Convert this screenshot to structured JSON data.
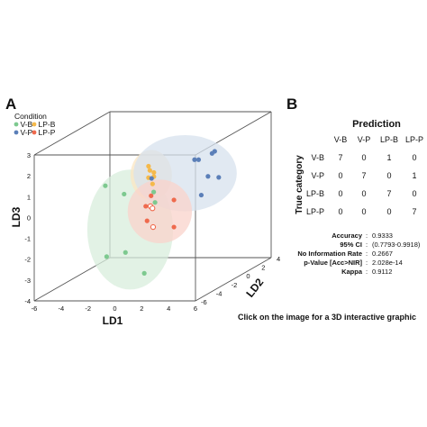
{
  "panel_a_label": "A",
  "panel_b_label": "B",
  "footnote": "Click on the image for a 3D interactive graphic",
  "chart_data": [
    {
      "type": "scatter",
      "projection": "3d",
      "legend": {
        "title": "Condition",
        "placement": "top-left",
        "entries": [
          {
            "name": "V-B",
            "color": "#7dc98f"
          },
          {
            "name": "LP-B",
            "color": "#f5b94a"
          },
          {
            "name": "V-P",
            "color": "#5b7fb8"
          },
          {
            "name": "LP-P",
            "color": "#ef6a4d"
          }
        ]
      },
      "axes": {
        "x": {
          "label": "LD1",
          "range": [
            -6,
            6
          ],
          "ticks": [
            "-6",
            "-4",
            "-2",
            "0",
            "2",
            "4",
            "6"
          ]
        },
        "y": {
          "label": "LD2",
          "range": [
            -6,
            4
          ],
          "ticks": [
            "-6",
            "-4",
            "-2",
            "0",
            "2",
            "4"
          ]
        },
        "z": {
          "label": "LD3",
          "range": [
            -4,
            3
          ],
          "ticks": [
            "-4",
            "-3",
            "-2",
            "-1",
            "0",
            "1",
            "2",
            "3"
          ]
        }
      },
      "series": [
        {
          "name": "V-B",
          "color": "#7dc98f",
          "ellipse_fill": "#d8eedc",
          "points": [
            [
              -2.4,
              -3.0,
              0.9
            ],
            [
              -1.0,
              -3.0,
              0.5
            ],
            [
              1.2,
              -3.0,
              0.6
            ],
            [
              1.3,
              -3.0,
              0.1
            ],
            [
              -0.9,
              -3.0,
              -2.3
            ],
            [
              -2.3,
              -3.0,
              -2.5
            ],
            [
              0.5,
              -3.0,
              -3.3
            ]
          ]
        },
        {
          "name": "LP-B",
          "color": "#f5b94a",
          "ellipse_fill": "#fbe6c2",
          "points": [
            [
              -2.0,
              2.0,
              0.8
            ],
            [
              -1.9,
              2.0,
              0.6
            ],
            [
              -1.6,
              2.0,
              0.5
            ],
            [
              -2.0,
              2.0,
              0.25
            ],
            [
              -1.6,
              2.0,
              0.3
            ],
            [
              -1.7,
              2.0,
              -0.05
            ]
          ]
        },
        {
          "name": "V-P",
          "color": "#5b7fb8",
          "ellipse_fill": "#d7e1ee",
          "points": [
            [
              0.3,
              4.0,
              0.7
            ],
            [
              0.6,
              4.0,
              0.7
            ],
            [
              1.6,
              4.0,
              1.0
            ],
            [
              1.8,
              4.0,
              1.1
            ],
            [
              1.3,
              4.0,
              -0.1
            ],
            [
              2.1,
              4.0,
              -0.15
            ],
            [
              0.8,
              4.0,
              -1.0
            ],
            [
              -2.9,
              4.0,
              -0.2
            ]
          ]
        },
        {
          "name": "LP-P",
          "color": "#ef6a4d",
          "ellipse_fill": "#f9d3cb",
          "points": [
            [
              -0.4,
              -0.5,
              -0.1
            ],
            [
              -0.8,
              -0.5,
              -0.6
            ],
            [
              -0.45,
              -0.5,
              -0.6
            ],
            [
              -0.3,
              -0.5,
              -0.7
            ],
            [
              -0.7,
              -0.5,
              -1.3
            ],
            [
              -0.25,
              -0.5,
              -1.6
            ],
            [
              1.3,
              -0.5,
              -0.3
            ],
            [
              1.3,
              -0.5,
              -1.6
            ]
          ]
        }
      ]
    },
    {
      "type": "table",
      "title": "Prediction",
      "row_axis_label": "True category",
      "columns": [
        "V-B",
        "V-P",
        "LP-B",
        "LP-P"
      ],
      "rows": [
        {
          "label": "V-B",
          "values": [
            7,
            0,
            1,
            0
          ]
        },
        {
          "label": "V-P",
          "values": [
            0,
            7,
            0,
            1
          ]
        },
        {
          "label": "LP-B",
          "values": [
            0,
            0,
            7,
            0
          ]
        },
        {
          "label": "LP-P",
          "values": [
            0,
            0,
            0,
            7
          ]
        }
      ],
      "stats": [
        {
          "label": "Accuracy",
          "value": "0.9333"
        },
        {
          "label": "95% CI",
          "value": "(0.7793-0.9918)"
        },
        {
          "label": "No Information Rate",
          "value": "0.2667"
        },
        {
          "label": "p-Value [Acc>NIR]",
          "value": "2.028e-14"
        },
        {
          "label": "Kappa",
          "value": "0.9112"
        }
      ]
    }
  ]
}
